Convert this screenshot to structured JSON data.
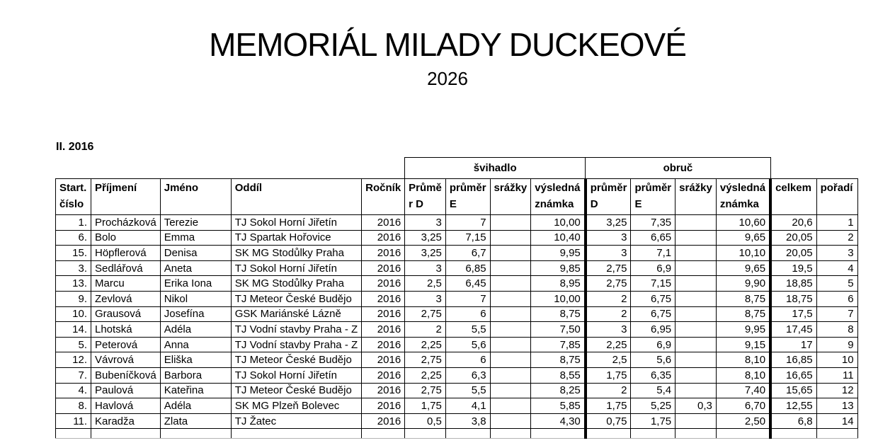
{
  "page": {
    "title": "MEMORIÁL MILADY DUCKEOVÉ",
    "year": "2026",
    "section_label": "II. 2016"
  },
  "table": {
    "groups": [
      {
        "label": "švihadlo"
      },
      {
        "label": "obruč"
      }
    ],
    "headers": {
      "start_number": "Start.\nčíslo",
      "surname": "Příjmení",
      "first_name": "Jméno",
      "club": "Oddíl",
      "birth_year": "Ročník",
      "svihadlo_prumer_d": "Průmě\nr D",
      "svihadlo_prumer_e": "průměr\nE",
      "svihadlo_srazky": "srážky",
      "svihadlo_vysledna": "výsledná\nznámka",
      "obruc_prumer_d": "průměr\nD",
      "obruc_prumer_e": "průměr\nE",
      "obruc_srazky": "srážky",
      "obruc_vysledna": "výsledná\nznámka",
      "total": "celkem",
      "rank": "pořadí"
    },
    "rows": [
      [
        "1.",
        "Procházková",
        "Terezie",
        "TJ Sokol Horní Jiřetín",
        "2016",
        "3",
        "7",
        "",
        "10,00",
        "3,25",
        "7,35",
        "",
        "10,60",
        "20,6",
        "1"
      ],
      [
        "6.",
        "Bolo",
        "Emma",
        "TJ Spartak Hořovice",
        "2016",
        "3,25",
        "7,15",
        "",
        "10,40",
        "3",
        "6,65",
        "",
        "9,65",
        "20,05",
        "2"
      ],
      [
        "15.",
        "Höpflerová",
        "Denisa",
        "SK MG Stodůlky Praha",
        "2016",
        "3,25",
        "6,7",
        "",
        "9,95",
        "3",
        "7,1",
        "",
        "10,10",
        "20,05",
        "3"
      ],
      [
        "3.",
        "Sedlářová",
        "Aneta",
        "TJ Sokol Horní Jiřetín",
        "2016",
        "3",
        "6,85",
        "",
        "9,85",
        "2,75",
        "6,9",
        "",
        "9,65",
        "19,5",
        "4"
      ],
      [
        "13.",
        "Marcu",
        "Erika Iona",
        "SK MG Stodůlky Praha",
        "2016",
        "2,5",
        "6,45",
        "",
        "8,95",
        "2,75",
        "7,15",
        "",
        "9,90",
        "18,85",
        "5"
      ],
      [
        "9.",
        "Zevlová",
        "Nikol",
        "TJ Meteor České Budějo",
        "2016",
        "3",
        "7",
        "",
        "10,00",
        "2",
        "6,75",
        "",
        "8,75",
        "18,75",
        "6"
      ],
      [
        "10.",
        "Grausová",
        "Josefína",
        "GSK Mariánské Lázně",
        "2016",
        "2,75",
        "6",
        "",
        "8,75",
        "2",
        "6,75",
        "",
        "8,75",
        "17,5",
        "7"
      ],
      [
        "14.",
        "Lhotská",
        "Adéla",
        "TJ Vodní stavby Praha - Z",
        "2016",
        "2",
        "5,5",
        "",
        "7,50",
        "3",
        "6,95",
        "",
        "9,95",
        "17,45",
        "8"
      ],
      [
        "5.",
        "Peterová",
        "Anna",
        "TJ Vodní stavby Praha - Z",
        "2016",
        "2,25",
        "5,6",
        "",
        "7,85",
        "2,25",
        "6,9",
        "",
        "9,15",
        "17",
        "9"
      ],
      [
        "12.",
        "Vávrová",
        "Eliška",
        "TJ Meteor České Budějo",
        "2016",
        "2,75",
        "6",
        "",
        "8,75",
        "2,5",
        "5,6",
        "",
        "8,10",
        "16,85",
        "10"
      ],
      [
        "7.",
        "Bubeníčková",
        "Barbora",
        "TJ Sokol Horní Jiřetín",
        "2016",
        "2,25",
        "6,3",
        "",
        "8,55",
        "1,75",
        "6,35",
        "",
        "8,10",
        "16,65",
        "11"
      ],
      [
        "4.",
        "Paulová",
        "Kateřina",
        "TJ Meteor České Budějo",
        "2016",
        "2,75",
        "5,5",
        "",
        "8,25",
        "2",
        "5,4",
        "",
        "7,40",
        "15,65",
        "12"
      ],
      [
        "8.",
        "Havlová",
        "Adéla",
        "SK MG Plzeň Bolevec",
        "2016",
        "1,75",
        "4,1",
        "",
        "5,85",
        "1,75",
        "5,25",
        "0,3",
        "6,70",
        "12,55",
        "13"
      ],
      [
        "11.",
        "Karadža",
        "Zlata",
        "TJ Žatec",
        "2016",
        "0,5",
        "3,8",
        "",
        "4,30",
        "0,75",
        "1,75",
        "",
        "2,50",
        "6,8",
        "14"
      ]
    ]
  }
}
